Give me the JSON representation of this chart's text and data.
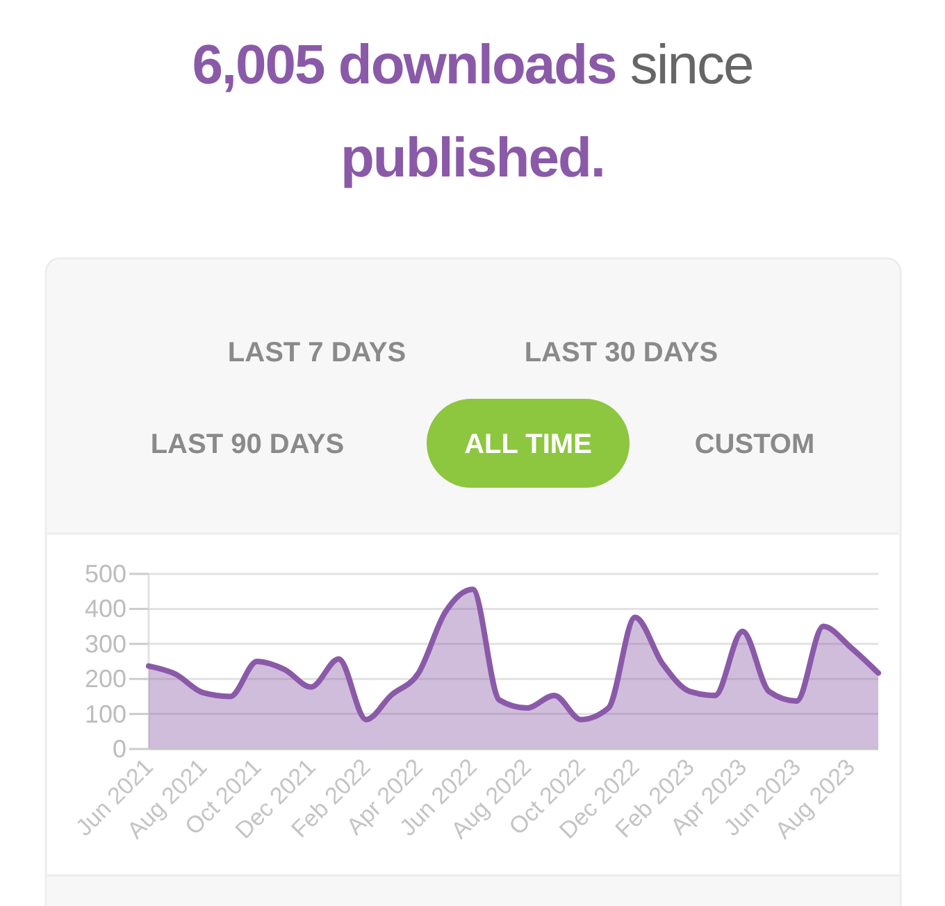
{
  "chart_data": {
    "type": "area",
    "title": "6,005 downloads since published.",
    "annotations": [
      "LAST 7 DAYS",
      "LAST 30 DAYS",
      "LAST 90 DAYS",
      "ALL TIME",
      "CUSTOM"
    ],
    "x": [
      "2021-06",
      "2021-07",
      "2021-08",
      "2021-09",
      "2021-10",
      "2021-11",
      "2021-12",
      "2022-01",
      "2022-02",
      "2022-03",
      "2022-04",
      "2022-05",
      "2022-06",
      "2022-07",
      "2022-08",
      "2022-09",
      "2022-10",
      "2022-11",
      "2022-12",
      "2023-01",
      "2023-02",
      "2023-03",
      "2023-04",
      "2023-05",
      "2023-06",
      "2023-07",
      "2023-08",
      "2023-09"
    ],
    "series": [
      {
        "color": "#8a5aa8",
        "values": [
          237,
          214,
          161,
          150,
          250,
          227,
          177,
          257,
          84,
          153,
          217,
          390,
          456,
          140,
          117,
          153,
          84,
          117,
          376,
          243,
          164,
          153,
          336,
          164,
          137,
          350,
          290,
          217
        ]
      }
    ],
    "xlim": [
      "2021-06",
      "2023-09"
    ],
    "xticks": [
      {
        "value": "2021-06",
        "label": "Jun 2021"
      },
      {
        "value": "2021-08",
        "label": "Aug 2021"
      },
      {
        "value": "2021-10",
        "label": "Oct 2021"
      },
      {
        "value": "2021-12",
        "label": "Dec 2021"
      },
      {
        "value": "2022-02",
        "label": "Feb 2022"
      },
      {
        "value": "2022-04",
        "label": "Apr 2022"
      },
      {
        "value": "2022-06",
        "label": "Jun 2022"
      },
      {
        "value": "2022-08",
        "label": "Aug 2022"
      },
      {
        "value": "2022-10",
        "label": "Oct 2022"
      },
      {
        "value": "2022-12",
        "label": "Dec 2022"
      },
      {
        "value": "2023-02",
        "label": "Feb 2023"
      },
      {
        "value": "2023-04",
        "label": "Apr 2023"
      },
      {
        "value": "2023-06",
        "label": "Jun 2023"
      },
      {
        "value": "2023-08",
        "label": "Aug 2023"
      }
    ],
    "ylim": [
      0,
      500
    ],
    "yticks": [
      0,
      100,
      200,
      300,
      400,
      500
    ],
    "grid": "y",
    "marker": "none",
    "line_style": "solid"
  }
}
